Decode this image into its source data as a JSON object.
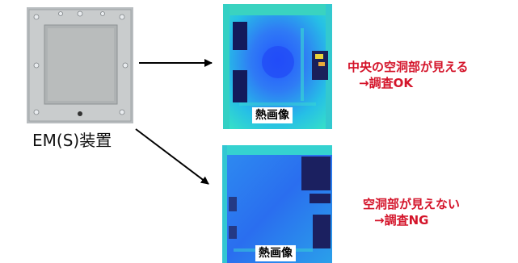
{
  "device": {
    "label": "EM(S)装置"
  },
  "thermal_top": {
    "caption": "熱画像"
  },
  "thermal_bottom": {
    "caption": "熱画像"
  },
  "result_ok": {
    "line1": "中央の空洞部が見える",
    "line2": "→調査OK"
  },
  "result_ng": {
    "line1": "空洞部が見えない",
    "line2": "→調査NG"
  },
  "colors": {
    "result_text": "#d4142a",
    "arrow": "#000000",
    "thermal_blue": "#2a6cff",
    "thermal_cyan": "#28d3e8"
  }
}
